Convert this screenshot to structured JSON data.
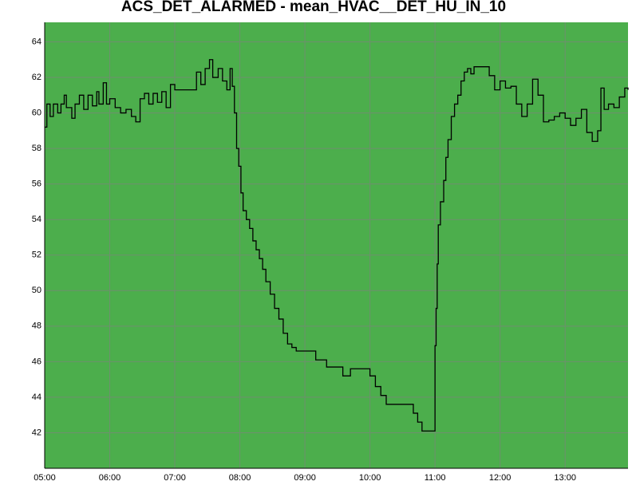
{
  "chart_data": {
    "type": "step",
    "title": "ACS_DET_ALARMED - mean_HVAC__DET_HU_IN_10",
    "x": [
      "05:00",
      "05:02",
      "05:05",
      "05:08",
      "05:12",
      "05:15",
      "05:18",
      "05:20",
      "05:25",
      "05:28",
      "05:32",
      "05:36",
      "05:40",
      "05:44",
      "05:48",
      "05:50",
      "05:54",
      "05:57",
      "06:00",
      "06:05",
      "06:10",
      "06:15",
      "06:20",
      "06:24",
      "06:28",
      "06:32",
      "06:36",
      "06:40",
      "06:44",
      "06:48",
      "06:52",
      "06:56",
      "07:00",
      "07:10",
      "07:16",
      "07:20",
      "07:24",
      "07:28",
      "07:32",
      "07:35",
      "07:40",
      "07:44",
      "07:48",
      "07:51",
      "07:53",
      "07:55",
      "07:57",
      "07:59",
      "08:01",
      "08:03",
      "08:06",
      "08:09",
      "08:12",
      "08:15",
      "08:18",
      "08:21",
      "08:24",
      "08:28",
      "08:32",
      "08:36",
      "08:40",
      "08:44",
      "08:48",
      "08:52",
      "09:00",
      "09:10",
      "09:20",
      "09:30",
      "09:35",
      "09:42",
      "09:55",
      "10:00",
      "10:05",
      "10:10",
      "10:15",
      "10:35",
      "10:40",
      "10:44",
      "10:48",
      "10:59",
      "11:00",
      "11:01",
      "11:02",
      "11:03",
      "11:05",
      "11:08",
      "11:10",
      "11:12",
      "11:15",
      "11:18",
      "11:21",
      "11:24",
      "11:27",
      "11:30",
      "11:33",
      "11:36",
      "11:45",
      "11:50",
      "11:55",
      "12:00",
      "12:05",
      "12:10",
      "12:15",
      "12:20",
      "12:25",
      "12:30",
      "12:35",
      "12:40",
      "12:45",
      "12:50",
      "12:55",
      "13:00",
      "13:05",
      "13:10",
      "13:15",
      "13:20",
      "13:25",
      "13:30",
      "13:33",
      "13:36",
      "13:40",
      "13:45",
      "13:50",
      "13:55",
      "13:58"
    ],
    "series": [
      {
        "color": "#000000",
        "values": [
          59.2,
          60.5,
          59.8,
          60.5,
          60.0,
          60.5,
          61.0,
          60.3,
          59.7,
          60.5,
          61.0,
          60.2,
          61.0,
          60.4,
          61.2,
          60.5,
          61.7,
          60.5,
          60.8,
          60.3,
          60.0,
          60.2,
          59.8,
          59.5,
          60.8,
          61.1,
          60.5,
          61.1,
          60.6,
          61.2,
          60.3,
          61.6,
          61.3,
          61.3,
          61.3,
          62.3,
          61.6,
          62.5,
          63.0,
          62.0,
          62.5,
          61.8,
          61.3,
          62.5,
          61.5,
          60.0,
          58.0,
          57.0,
          55.5,
          54.5,
          54.0,
          53.5,
          52.8,
          52.3,
          51.8,
          51.2,
          50.5,
          49.8,
          49.0,
          48.4,
          47.6,
          47.0,
          46.8,
          46.6,
          46.6,
          46.1,
          45.7,
          45.7,
          45.2,
          45.6,
          45.6,
          45.2,
          44.6,
          44.1,
          43.6,
          43.6,
          43.1,
          42.6,
          42.1,
          42.1,
          46.9,
          49.0,
          51.5,
          53.7,
          55.0,
          56.2,
          57.5,
          58.5,
          59.8,
          60.5,
          61.0,
          61.8,
          62.3,
          62.5,
          62.2,
          62.6,
          62.6,
          62.1,
          61.3,
          61.8,
          61.4,
          61.5,
          60.5,
          59.8,
          60.5,
          61.9,
          61.0,
          59.5,
          59.6,
          59.8,
          60.0,
          59.7,
          59.3,
          59.7,
          60.2,
          58.9,
          58.4,
          59.0,
          61.4,
          60.2,
          60.5,
          60.3,
          60.9,
          61.4,
          61.3
        ]
      }
    ],
    "xlim": [
      "05:00",
      "13:58"
    ],
    "xticks": [
      "05:00",
      "06:00",
      "07:00",
      "08:00",
      "09:00",
      "10:00",
      "11:00",
      "12:00",
      "13:00"
    ],
    "ylim": [
      40,
      65.1
    ],
    "yticks": [
      42,
      44,
      46,
      48,
      50,
      52,
      54,
      56,
      58,
      60,
      62,
      64
    ],
    "grid": true,
    "background": "#4cae4c",
    "grid_color": "#6f8f6f"
  }
}
